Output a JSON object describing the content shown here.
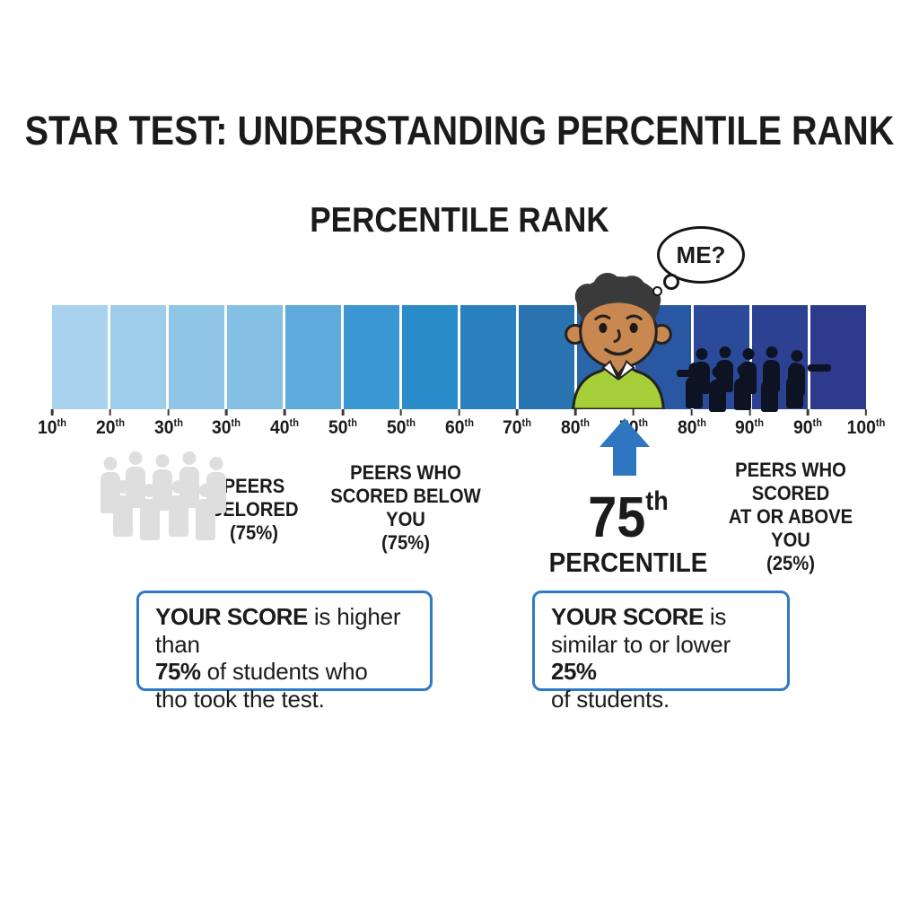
{
  "title": "STAR TEST: UNDERSTANDING PERCENTILE RANK",
  "subtitle": "PERCENTILE RANK",
  "thought_bubble": "ME?",
  "chart_data": {
    "type": "bar",
    "kind": "percentile gradient scale",
    "ticks": [
      {
        "v": "10",
        "s": "th"
      },
      {
        "v": "20",
        "s": "th"
      },
      {
        "v": "30",
        "s": "th"
      },
      {
        "v": "30",
        "s": "th"
      },
      {
        "v": "40",
        "s": "th"
      },
      {
        "v": "50",
        "s": "th"
      },
      {
        "v": "50",
        "s": "th"
      },
      {
        "v": "60",
        "s": "th"
      },
      {
        "v": "70",
        "s": "th"
      },
      {
        "v": "80",
        "s": "th"
      },
      {
        "v": "70",
        "s": "th"
      },
      {
        "v": "80",
        "s": "th"
      },
      {
        "v": "90",
        "s": "th"
      },
      {
        "v": "90",
        "s": "th"
      },
      {
        "v": "100",
        "s": "th"
      }
    ],
    "segment_colors": [
      "#a9d2ee",
      "#9ecdeb",
      "#90c5e7",
      "#84bfe4",
      "#5fabdb",
      "#3b97d1",
      "#2a8bc9",
      "#2a7fbd",
      "#2a73b1",
      "#2a66a9",
      "#2a57a1",
      "#2b4b9a",
      "#2c4192",
      "#2e3a8c"
    ],
    "highlight": "75th percentile marker"
  },
  "marker": {
    "value": "75",
    "suffix": "th",
    "label": "PERCENTILE"
  },
  "annotations": {
    "peers_left": [
      "PEERS",
      "BELORED",
      "(75%)"
    ],
    "peers_below": [
      "PEERS WHO",
      "SCORED BELOW YOU",
      "(75%)"
    ],
    "peers_above": [
      "PEERS WHO SCORED",
      "AT OR ABOVE YOU",
      "(25%)"
    ]
  },
  "peer_groups": {
    "gray_count": 9,
    "dark_count": 10
  },
  "score_boxes": {
    "left": {
      "b1": "YOUR SCORE",
      "t1": " is higher than",
      "b2": "75%",
      "t2": " of students who",
      "t3": "tho took the test."
    },
    "right": {
      "b1": "YOUR SCORE",
      "t1": " is",
      "t2a": "similar to or lower ",
      "b2": "25%",
      "t3": "of students."
    }
  },
  "colors": {
    "accent": "#2e76bf",
    "box_border": "#2e7ac5",
    "silhouette_gray": "#dedede",
    "silhouette_dark": "#0d1322",
    "sweater_green": "#a5ce39",
    "skin": "#c9884f",
    "hair": "#3a3a3a",
    "text": "#1b1b1b"
  }
}
